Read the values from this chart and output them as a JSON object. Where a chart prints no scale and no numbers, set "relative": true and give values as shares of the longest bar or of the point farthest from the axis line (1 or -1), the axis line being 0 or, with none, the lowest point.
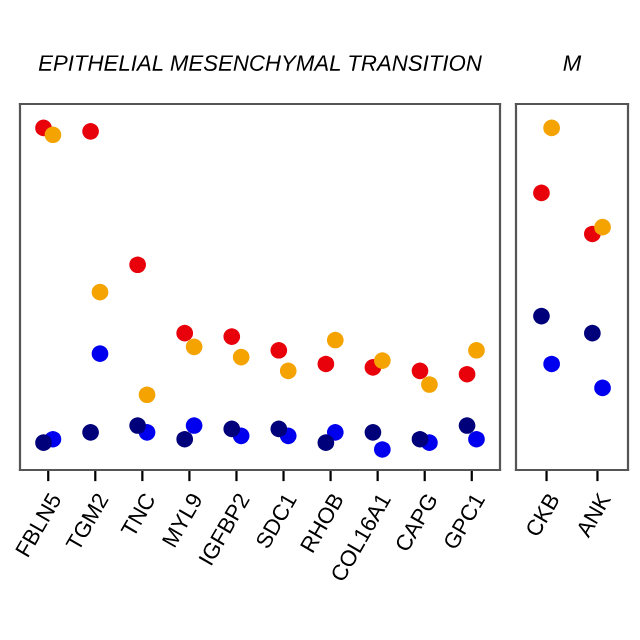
{
  "chart_data": [
    {
      "type": "scatter",
      "title": "EPITHELIAL MESENCHYMAL TRANSITION",
      "relative": true,
      "marker": "circle",
      "grid": false,
      "legend": false,
      "categories": [
        "FBLN5",
        "TGM2",
        "TNC",
        "MYL9",
        "IGFBP2",
        "SDC1",
        "RHOB",
        "COL16A1",
        "CAPG",
        "GPC1"
      ],
      "series": [
        {
          "color": "#e8000b",
          "values": [
            1.0,
            0.99,
            0.6,
            0.4,
            0.39,
            0.35,
            0.31,
            0.3,
            0.29,
            0.28
          ]
        },
        {
          "color": "#f5a300",
          "values": [
            0.98,
            0.52,
            0.22,
            0.36,
            0.33,
            0.29,
            0.38,
            0.32,
            0.25,
            0.35
          ]
        },
        {
          "color": "#0000ee",
          "values": [
            0.09,
            0.34,
            0.11,
            0.13,
            0.1,
            0.1,
            0.11,
            0.06,
            0.08,
            0.09
          ]
        },
        {
          "color": "#00007a",
          "values": [
            0.08,
            0.11,
            0.13,
            0.09,
            0.12,
            0.12,
            0.08,
            0.11,
            0.09,
            0.13
          ]
        }
      ]
    },
    {
      "type": "scatter",
      "title": "M",
      "relative": true,
      "marker": "circle",
      "grid": false,
      "legend": false,
      "categories": [
        "CKB",
        "ANK"
      ],
      "series": [
        {
          "color": "#e8000b",
          "values": [
            0.81,
            0.69
          ]
        },
        {
          "color": "#f5a300",
          "values": [
            1.0,
            0.71
          ]
        },
        {
          "color": "#0000ee",
          "values": [
            0.31,
            0.24
          ]
        },
        {
          "color": "#00007a",
          "values": [
            0.45,
            0.4
          ]
        }
      ]
    }
  ]
}
